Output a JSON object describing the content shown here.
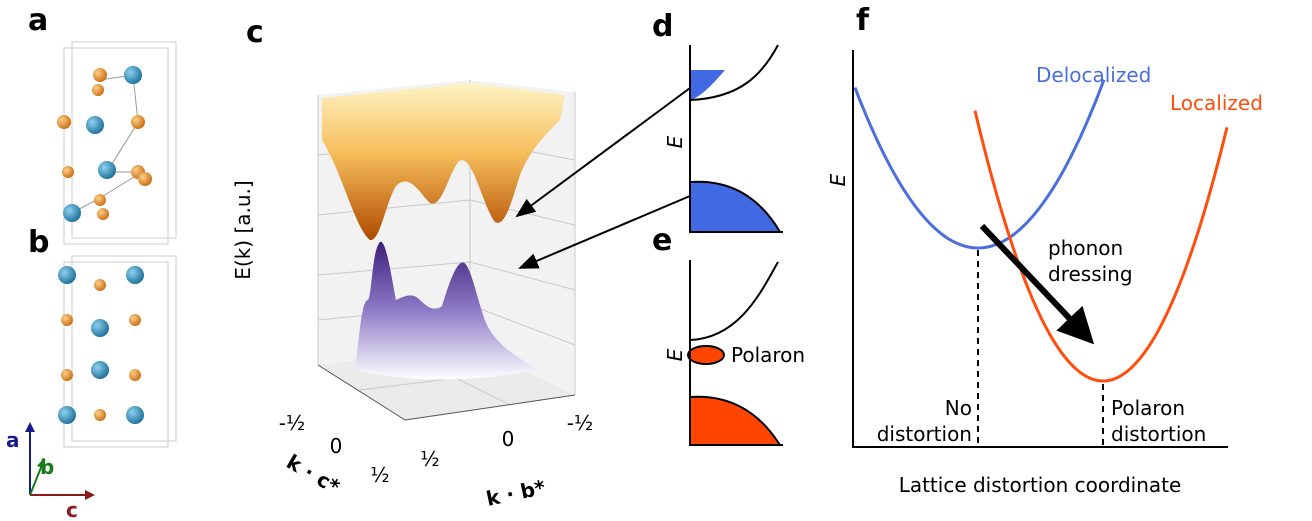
{
  "panel_labels": [
    "a",
    "b",
    "c",
    "d",
    "e",
    "f"
  ],
  "axes_triad": [
    "a",
    "b",
    "c"
  ],
  "panel_c": {
    "z_label": "E(k) [a.u.]",
    "c_ticks": [
      "-½",
      "0",
      "½"
    ],
    "b_ticks": [
      "½",
      "0",
      "-½"
    ],
    "c_label": "k · c*",
    "b_label": "k · b*"
  },
  "panel_d": {
    "y_label": "E"
  },
  "panel_e": {
    "y_label": "E",
    "annotation": "Polaron"
  },
  "panel_f": {
    "y_label": "E",
    "x_label": "Lattice distortion coordinate",
    "curves": [
      "Delocalized",
      "Localized"
    ],
    "arrow_label": [
      "phonon",
      "dressing"
    ],
    "markers": [
      [
        "No",
        "distortion"
      ],
      [
        "Polaron",
        "distortion"
      ]
    ]
  }
}
